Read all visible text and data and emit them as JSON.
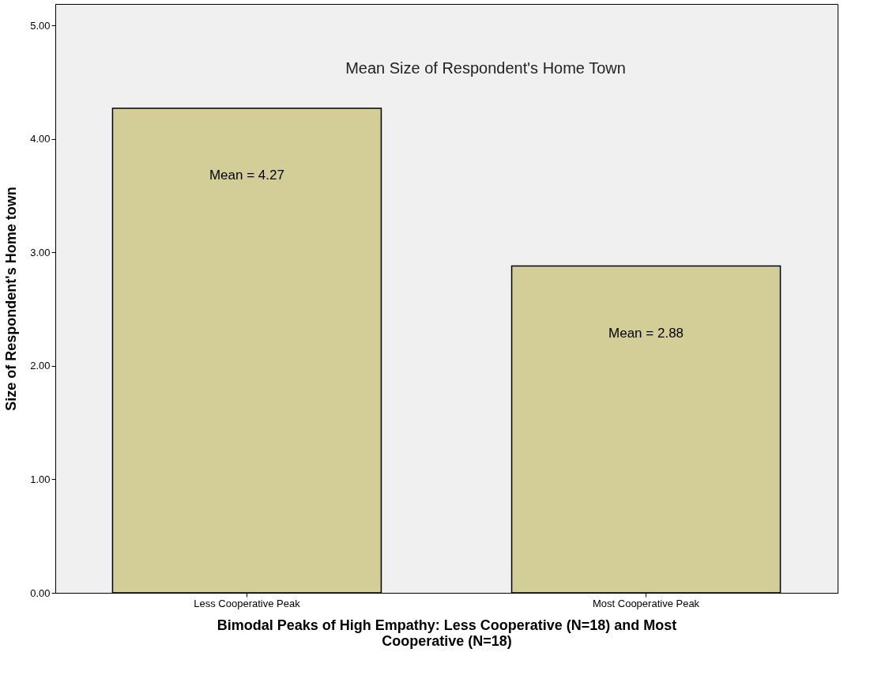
{
  "chart_data": {
    "type": "bar",
    "title": "Mean Size of Respondent's Home Town",
    "xlabel": "Bimodal Peaks of High Empathy: Less Cooperative (N=18) and Most Cooperative (N=18)",
    "ylabel": "Size of Respondent's Home town",
    "categories": [
      "Less Cooperative Peak",
      "Most Cooperative Peak"
    ],
    "values": [
      4.27,
      2.88
    ],
    "value_labels": [
      "Mean = 4.27",
      "Mean = 2.88"
    ],
    "color": "#d3ce97",
    "ylim": [
      0,
      5.19
    ],
    "yticks": [
      {
        "value": 0,
        "label": "0.00"
      },
      {
        "value": 1,
        "label": "1.00"
      },
      {
        "value": 2,
        "label": "2.00"
      },
      {
        "value": 3,
        "label": "3.00"
      },
      {
        "value": 4,
        "label": "4.00"
      },
      {
        "value": 5,
        "label": "5.00"
      }
    ],
    "grid": false
  }
}
